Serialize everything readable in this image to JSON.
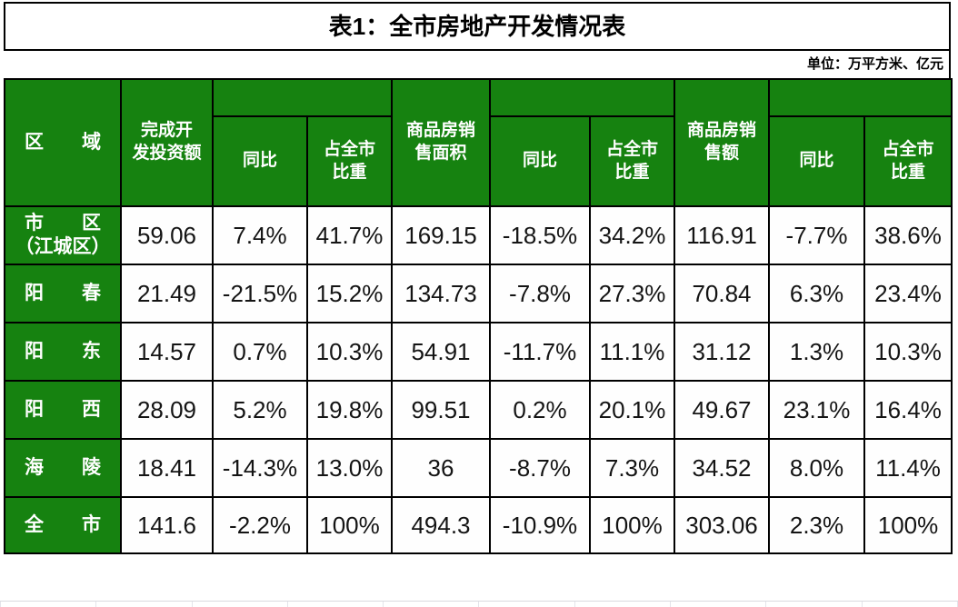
{
  "title": "表1：全市房地产开发情况表",
  "unit_note": "单位：万平方米、亿元",
  "colors": {
    "header_green": "#168210",
    "border": "#000000",
    "header_text": "#ffffff",
    "data_text": "#141414"
  },
  "table": {
    "header": {
      "region": "区　　域",
      "invest": "完成开\n发投资额",
      "yoy1": "同比",
      "share1": "占全市\n比重",
      "sales_area": "商品房销\n售面积",
      "yoy2": "同比",
      "share2": "占全市\n比重",
      "sales_value": "商品房销\n售额",
      "yoy3": "同比",
      "share3": "占全市\n比重"
    },
    "rows": [
      {
        "region": "市　　区\n（江城区）",
        "cells": [
          "59.06",
          "7.4%",
          "41.7%",
          "169.15",
          "-18.5%",
          "34.2%",
          "116.91",
          "-7.7%",
          "38.6%"
        ]
      },
      {
        "region": "阳　　春",
        "cells": [
          "21.49",
          "-21.5%",
          "15.2%",
          "134.73",
          "-7.8%",
          "27.3%",
          "70.84",
          "6.3%",
          "23.4%"
        ]
      },
      {
        "region": "阳　　东",
        "cells": [
          "14.57",
          "0.7%",
          "10.3%",
          "54.91",
          "-11.7%",
          "11.1%",
          "31.12",
          "1.3%",
          "10.3%"
        ]
      },
      {
        "region": "阳　　西",
        "cells": [
          "28.09",
          "5.2%",
          "19.8%",
          "99.51",
          "0.2%",
          "20.1%",
          "49.67",
          "23.1%",
          "16.4%"
        ]
      },
      {
        "region": "海　　陵",
        "cells": [
          "18.41",
          "-14.3%",
          "13.0%",
          "36",
          "-8.7%",
          "7.3%",
          "34.52",
          "8.0%",
          "11.4%"
        ]
      },
      {
        "region": "全　　市",
        "cells": [
          "141.6",
          "-2.2%",
          "100%",
          "494.3",
          "-10.9%",
          "100%",
          "303.06",
          "2.3%",
          "100%"
        ]
      }
    ]
  },
  "chart_data": {
    "type": "table",
    "title": "表1：全市房地产开发情况表",
    "unit_note": "单位：万平方米、亿元",
    "columns": [
      "区域",
      "完成开发投资额",
      "同比",
      "占全市比重",
      "商品房销售面积",
      "同比",
      "占全市比重",
      "商品房销售额",
      "同比",
      "占全市比重"
    ],
    "rows": [
      [
        "市区（江城区）",
        "59.06",
        "7.4%",
        "41.7%",
        "169.15",
        "-18.5%",
        "34.2%",
        "116.91",
        "-7.7%",
        "38.6%"
      ],
      [
        "阳春",
        "21.49",
        "-21.5%",
        "15.2%",
        "134.73",
        "-7.8%",
        "27.3%",
        "70.84",
        "6.3%",
        "23.4%"
      ],
      [
        "阳东",
        "14.57",
        "0.7%",
        "10.3%",
        "54.91",
        "-11.7%",
        "11.1%",
        "31.12",
        "1.3%",
        "10.3%"
      ],
      [
        "阳西",
        "28.09",
        "5.2%",
        "19.8%",
        "99.51",
        "0.2%",
        "20.1%",
        "49.67",
        "23.1%",
        "16.4%"
      ],
      [
        "海陵",
        "18.41",
        "-14.3%",
        "13.0%",
        "36",
        "-8.7%",
        "7.3%",
        "34.52",
        "8.0%",
        "11.4%"
      ],
      [
        "全市",
        "141.6",
        "-2.2%",
        "100%",
        "494.3",
        "-10.9%",
        "100%",
        "303.06",
        "2.3%",
        "100%"
      ]
    ]
  }
}
